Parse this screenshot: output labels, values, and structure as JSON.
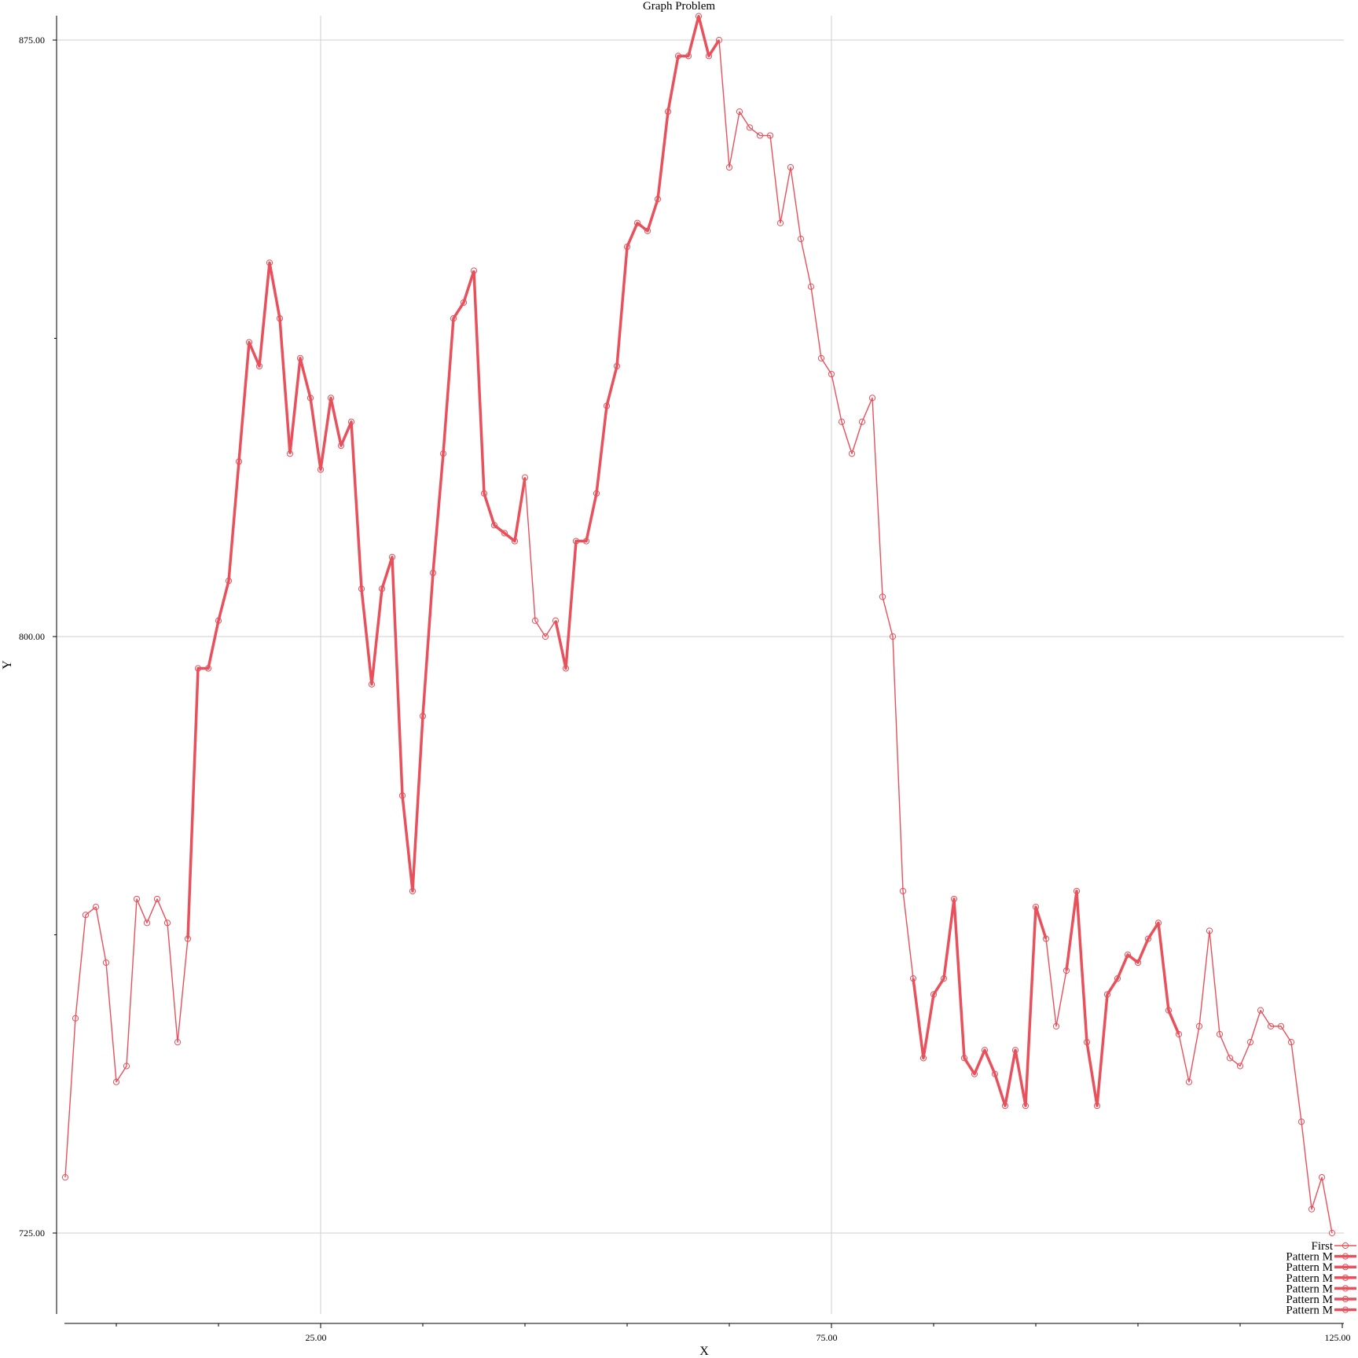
{
  "chart_data": {
    "type": "line",
    "title": "Graph Problem",
    "xlabel": "X",
    "ylabel": "Y",
    "xlim": [
      0,
      125
    ],
    "ylim": [
      715,
      878
    ],
    "x_ticks": [
      25,
      75,
      125
    ],
    "x_tick_labels": [
      "25.00",
      "75.00",
      "125.00"
    ],
    "x_minor_ticks": [
      5,
      15,
      35,
      45,
      55,
      65,
      85,
      95,
      105,
      115
    ],
    "y_ticks": [
      725,
      800,
      875
    ],
    "y_tick_labels": [
      "725.00",
      "800.00",
      "875.00"
    ],
    "y_minor_ticks": [
      762.5,
      837.5
    ],
    "grid": true,
    "legend_position": "bottom-right",
    "color": "#e8505b",
    "legend": [
      "First",
      "Pattern M",
      "Pattern M",
      "Pattern M",
      "Pattern M",
      "Pattern M",
      "Pattern M"
    ],
    "x": [
      0,
      1,
      2,
      3,
      4,
      5,
      6,
      7,
      8,
      9,
      10,
      11,
      12,
      13,
      14,
      15,
      16,
      17,
      18,
      19,
      20,
      21,
      22,
      23,
      24,
      25,
      26,
      27,
      28,
      29,
      30,
      31,
      32,
      33,
      34,
      35,
      36,
      37,
      38,
      39,
      40,
      41,
      42,
      43,
      44,
      45,
      46,
      47,
      48,
      49,
      50,
      51,
      52,
      53,
      54,
      55,
      56,
      57,
      58,
      59,
      60,
      61,
      62,
      63,
      64,
      65,
      66,
      67,
      68,
      69,
      70,
      71,
      72,
      73,
      74,
      75,
      76,
      77,
      78,
      79,
      80,
      81,
      82,
      83,
      84,
      85,
      86,
      87,
      88,
      89,
      90,
      91,
      92,
      93,
      94,
      95,
      96,
      97,
      98,
      99,
      100,
      101,
      102,
      103,
      104,
      105,
      106,
      107,
      108,
      109,
      110,
      111,
      112,
      113,
      114,
      115,
      116,
      117,
      118,
      119,
      120,
      121,
      122,
      123,
      124
    ],
    "y": [
      732,
      752,
      765,
      766,
      759,
      744,
      746,
      767,
      764,
      767,
      764,
      749,
      762,
      796,
      796,
      802,
      807,
      822,
      837,
      834,
      847,
      840,
      823,
      835,
      830,
      821,
      830,
      824,
      827,
      806,
      794,
      806,
      810,
      780,
      768,
      790,
      808,
      823,
      840,
      842,
      846,
      818,
      814,
      813,
      812,
      820,
      802,
      800,
      802,
      796,
      812,
      812,
      818,
      829,
      834,
      849,
      852,
      851,
      855,
      866,
      873,
      873,
      878,
      873,
      875,
      859,
      866,
      864,
      863,
      863,
      852,
      859,
      850,
      844,
      835,
      833,
      827,
      823,
      827,
      830,
      805,
      800,
      768,
      757,
      747,
      755,
      757,
      767,
      747,
      745,
      748,
      745,
      741,
      748,
      741,
      766,
      762,
      751,
      758,
      768,
      749,
      741,
      755,
      757,
      760,
      759,
      762,
      764,
      753,
      750,
      744,
      751,
      763,
      750,
      747,
      746,
      749,
      753,
      751,
      751,
      749,
      739,
      728,
      732,
      725
    ]
  }
}
